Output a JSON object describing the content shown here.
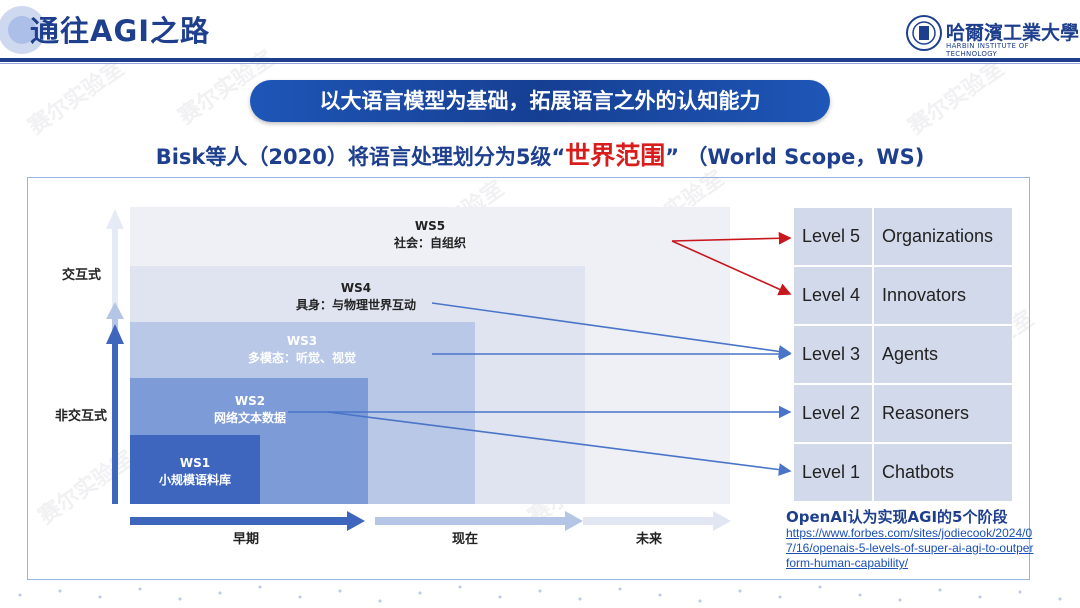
{
  "header": {
    "title": "通往AGI之路",
    "logo_text": "哈爾濱工業大學",
    "logo_sub": "HARBIN INSTITUTE OF TECHNOLOGY"
  },
  "banner": "以大语言模型为基础，拓展语言之外的认知能力",
  "subtitle": {
    "prefix": "Bisk等人（2020）将语言处理划分为5级",
    "quote_open": "“",
    "highlight": "世界范围",
    "quote_close": "”",
    "suffix": "（World Scope，WS)"
  },
  "y_axis": {
    "top_label": "交互式",
    "bottom_label": "非交互式"
  },
  "x_axis": [
    "早期",
    "现在",
    "未来"
  ],
  "world_scopes": [
    {
      "code": "WS1",
      "desc": "小规模语料库"
    },
    {
      "code": "WS2",
      "desc": "网络文本数据"
    },
    {
      "code": "WS3",
      "desc": "多模态：听觉、视觉"
    },
    {
      "code": "WS4",
      "desc": "具身：与物理世界互动"
    },
    {
      "code": "WS5",
      "desc": "社会：自组织"
    }
  ],
  "openai_levels": [
    {
      "level": "Level 5",
      "name": "Organizations"
    },
    {
      "level": "Level 4",
      "name": "Innovators"
    },
    {
      "level": "Level 3",
      "name": "Agents"
    },
    {
      "level": "Level 2",
      "name": "Reasoners"
    },
    {
      "level": "Level 1",
      "name": "Chatbots"
    }
  ],
  "source": {
    "title": "OpenAI认为实现AGI的5个阶段",
    "link": "https://www.forbes.com/sites/jodiecook/2024/07/16/openais-5-levels-of-super-ai-agi-to-outperform-human-capability/"
  },
  "watermark": "赛尔实验室",
  "colors": {
    "primary": "#1e3f8e",
    "accent_red": "#d81d1d",
    "arrow_blue": "#4a74c8"
  }
}
